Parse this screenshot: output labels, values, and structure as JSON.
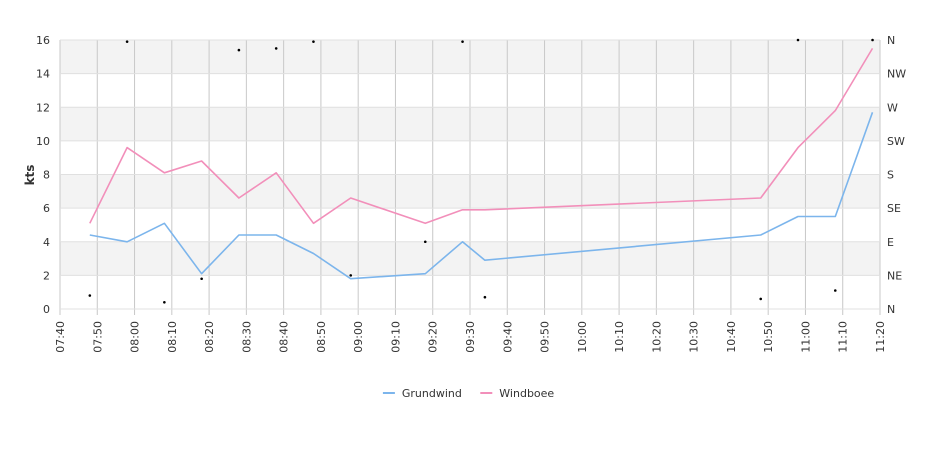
{
  "chart_data": {
    "type": "line",
    "ylabel": "kts",
    "ylim": [
      0,
      16
    ],
    "y_ticks": [
      "0",
      "2",
      "4",
      "6",
      "8",
      "10",
      "12",
      "14",
      "16"
    ],
    "right_axis_labels": [
      "N",
      "NE",
      "E",
      "SE",
      "S",
      "SW",
      "W",
      "NW",
      "N"
    ],
    "x_ticks": [
      "07:40",
      "07:50",
      "08:00",
      "08:10",
      "08:20",
      "08:30",
      "08:40",
      "08:50",
      "09:00",
      "09:10",
      "09:20",
      "09:30",
      "09:40",
      "09:50",
      "10:00",
      "10:10",
      "10:20",
      "10:30",
      "10:40",
      "10:50",
      "11:00",
      "11:10",
      "11:20"
    ],
    "xlim": [
      "07:40",
      "11:20"
    ],
    "grid": true,
    "legend_position": "bottom",
    "series": [
      {
        "name": "Grundwind",
        "color": "#7cb5ec",
        "points": [
          {
            "x": "07:48",
            "y": 4.4
          },
          {
            "x": "07:58",
            "y": 4.0
          },
          {
            "x": "08:08",
            "y": 5.1
          },
          {
            "x": "08:18",
            "y": 2.1
          },
          {
            "x": "08:28",
            "y": 4.4
          },
          {
            "x": "08:38",
            "y": 4.4
          },
          {
            "x": "08:48",
            "y": 3.3
          },
          {
            "x": "08:58",
            "y": 1.8
          },
          {
            "x": "09:18",
            "y": 2.1
          },
          {
            "x": "09:28",
            "y": 4.0
          },
          {
            "x": "09:34",
            "y": 2.9
          },
          {
            "x": "10:48",
            "y": 4.4
          },
          {
            "x": "10:58",
            "y": 5.5
          },
          {
            "x": "11:08",
            "y": 5.5
          },
          {
            "x": "11:18",
            "y": 11.7
          }
        ]
      },
      {
        "name": "Windboee",
        "color": "#f28fba",
        "points": [
          {
            "x": "07:48",
            "y": 5.1
          },
          {
            "x": "07:58",
            "y": 9.6
          },
          {
            "x": "08:08",
            "y": 8.1
          },
          {
            "x": "08:18",
            "y": 8.8
          },
          {
            "x": "08:28",
            "y": 6.6
          },
          {
            "x": "08:38",
            "y": 8.1
          },
          {
            "x": "08:48",
            "y": 5.1
          },
          {
            "x": "08:58",
            "y": 6.6
          },
          {
            "x": "09:18",
            "y": 5.1
          },
          {
            "x": "09:28",
            "y": 5.9
          },
          {
            "x": "09:34",
            "y": 5.9
          },
          {
            "x": "10:48",
            "y": 6.6
          },
          {
            "x": "10:58",
            "y": 9.6
          },
          {
            "x": "11:08",
            "y": 11.8
          },
          {
            "x": "11:18",
            "y": 15.5
          }
        ]
      },
      {
        "name": "",
        "type": "scatter",
        "color": "#000000",
        "points": [
          {
            "x": "07:48",
            "y": 0.8
          },
          {
            "x": "07:58",
            "y": 15.9
          },
          {
            "x": "08:08",
            "y": 0.4
          },
          {
            "x": "08:18",
            "y": 1.8
          },
          {
            "x": "08:28",
            "y": 15.4
          },
          {
            "x": "08:38",
            "y": 15.5
          },
          {
            "x": "08:48",
            "y": 15.9
          },
          {
            "x": "08:58",
            "y": 2.0
          },
          {
            "x": "09:18",
            "y": 4.0
          },
          {
            "x": "09:28",
            "y": 15.9
          },
          {
            "x": "09:34",
            "y": 0.7
          },
          {
            "x": "10:48",
            "y": 0.6
          },
          {
            "x": "10:58",
            "y": 16.0
          },
          {
            "x": "11:08",
            "y": 1.1
          },
          {
            "x": "11:18",
            "y": 16.0
          }
        ]
      }
    ]
  }
}
